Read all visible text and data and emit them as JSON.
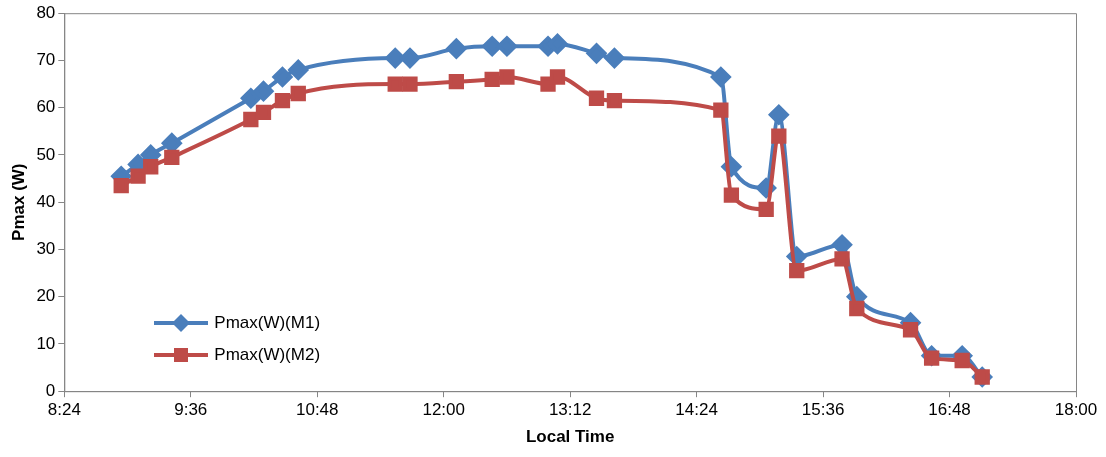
{
  "chart_data": {
    "type": "line",
    "xlabel": "Local Time",
    "ylabel": "Pmax (W)",
    "xlim": [
      8.4,
      18
    ],
    "xticks": [
      {
        "value": 8.4,
        "label": "8:24"
      },
      {
        "value": 9.6,
        "label": "9:36"
      },
      {
        "value": 10.8,
        "label": "10:48"
      },
      {
        "value": 12,
        "label": "12:00"
      },
      {
        "value": 13.2,
        "label": "13:12"
      },
      {
        "value": 14.4,
        "label": "14:24"
      },
      {
        "value": 15.6,
        "label": "15:36"
      },
      {
        "value": 16.8,
        "label": "16:48"
      },
      {
        "value": 18,
        "label": "18:00"
      }
    ],
    "ylim": [
      0,
      80
    ],
    "yticks": [
      0,
      10,
      20,
      30,
      40,
      50,
      60,
      70,
      80
    ],
    "x": [
      8.94,
      9.1,
      9.22,
      9.42,
      10.17,
      10.29,
      10.47,
      10.62,
      11.54,
      11.68,
      12.12,
      12.46,
      12.6,
      12.99,
      13.08,
      13.45,
      13.62,
      14.63,
      14.73,
      15.06,
      15.18,
      15.35,
      15.78,
      15.92,
      16.43,
      16.63,
      16.92,
      17.11
    ],
    "series": [
      {
        "name": "Pmax(W)(M1)",
        "color": "#4a7ebb",
        "marker": "diamond",
        "values": [
          45.5,
          48,
          50,
          52.5,
          62,
          63.5,
          66.5,
          68,
          70.5,
          70.5,
          72.5,
          73,
          73,
          73,
          73.5,
          71.5,
          70.5,
          66.5,
          47.5,
          43,
          58.5,
          28.5,
          31,
          20,
          14.5,
          7.5,
          7.5,
          3
        ]
      },
      {
        "name": "Pmax(W)(M2)",
        "color": "#be4b48",
        "marker": "square",
        "values": [
          43.5,
          45.5,
          47.5,
          49.5,
          57.5,
          59,
          61.5,
          63,
          65,
          65,
          65.5,
          66,
          66.5,
          65,
          66.5,
          62,
          61.5,
          59.5,
          41.5,
          38.5,
          54,
          25.5,
          28,
          17.5,
          13,
          7,
          6.5,
          3
        ]
      }
    ],
    "legend": "bottom left",
    "grid": false
  }
}
